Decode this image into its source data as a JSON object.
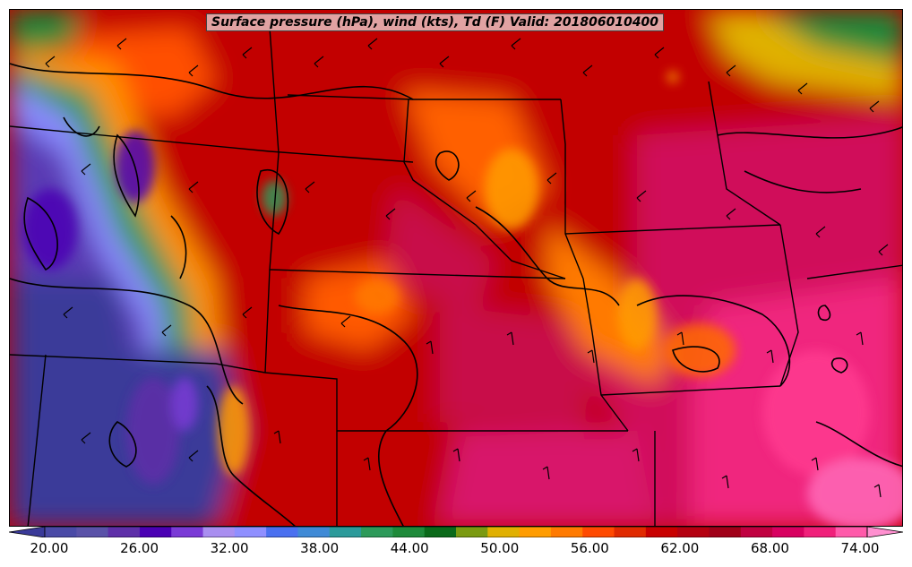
{
  "title": "Surface pressure (hPa), wind (kts), Td (F) Valid: 201806010400",
  "colorbar": {
    "colors": [
      "#3a3a99",
      "#4a4aa6",
      "#5a52a8",
      "#5e2fa8",
      "#4b00b4",
      "#7a3ad6",
      "#a98ef0",
      "#8f8fff",
      "#4a70f0",
      "#3f8ad6",
      "#2b9a9a",
      "#2d9a5a",
      "#1e8a3a",
      "#0a6a1a",
      "#7a9a10",
      "#e0b000",
      "#ff9c00",
      "#ff7a00",
      "#ff4a00",
      "#e02a00",
      "#c80000",
      "#b40010",
      "#a00018",
      "#c00040",
      "#d80060",
      "#f0207a",
      "#ff5aaa",
      "#ff90d0"
    ],
    "ticks": [
      "20.00",
      "26.00",
      "32.00",
      "38.00",
      "44.00",
      "50.00",
      "56.00",
      "62.00",
      "68.00",
      "74.00"
    ]
  }
}
